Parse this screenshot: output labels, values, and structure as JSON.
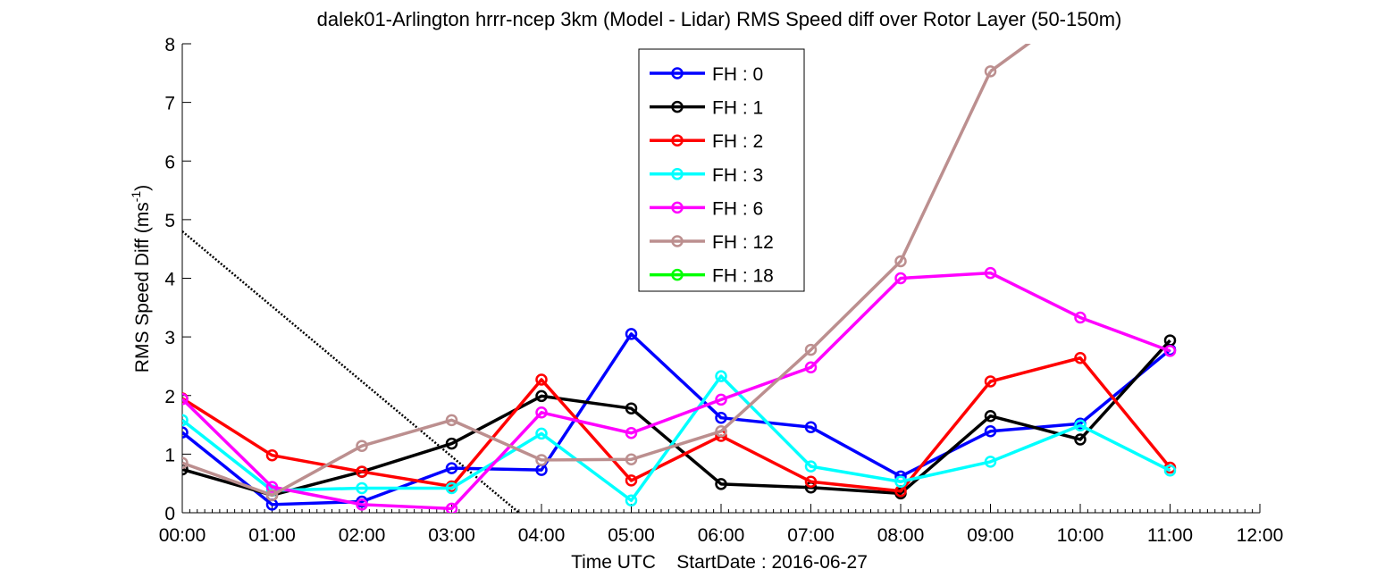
{
  "chart_data": {
    "type": "line",
    "title": "dalek01-Arlington hrrr-ncep 3km (Model - Lidar) RMS Speed diff over Rotor Layer (50-150m)",
    "xlabel": "Time UTC    StartDate : 2016-06-27",
    "ylabel_main": "RMS Speed Diff (ms",
    "ylabel_sup": "-1",
    "ylabel_close": ")",
    "x_ticks": [
      "00:00",
      "01:00",
      "02:00",
      "03:00",
      "04:00",
      "05:00",
      "06:00",
      "07:00",
      "08:00",
      "09:00",
      "10:00",
      "11:00",
      "12:00"
    ],
    "y_ticks": [
      "0",
      "1",
      "2",
      "3",
      "4",
      "5",
      "6",
      "7",
      "8"
    ],
    "xlim": [
      0,
      12
    ],
    "ylim": [
      0,
      8
    ],
    "grid": false,
    "legend_position": "top-center",
    "series": [
      {
        "name": "FH : 0",
        "color": "#0000ff",
        "x": [
          0,
          1,
          2,
          3,
          4,
          5,
          6,
          7,
          8,
          9,
          10,
          11
        ],
        "values": [
          1.37,
          0.14,
          0.19,
          0.76,
          0.73,
          3.05,
          1.62,
          1.46,
          0.62,
          1.39,
          1.52,
          2.78
        ]
      },
      {
        "name": "FH : 1",
        "color": "#000000",
        "x": [
          0,
          1,
          2,
          3,
          4,
          5,
          6,
          7,
          8,
          9,
          10,
          11
        ],
        "values": [
          0.74,
          0.3,
          0.7,
          1.18,
          1.99,
          1.78,
          0.49,
          0.43,
          0.33,
          1.65,
          1.25,
          2.94
        ]
      },
      {
        "name": "FH : 2",
        "color": "#ff0000",
        "x": [
          0,
          1,
          2,
          3,
          4,
          5,
          6,
          7,
          8,
          9,
          10,
          11
        ],
        "values": [
          1.95,
          0.98,
          0.7,
          0.45,
          2.27,
          0.55,
          1.31,
          0.53,
          0.37,
          2.24,
          2.64,
          0.77
        ]
      },
      {
        "name": "FH : 3",
        "color": "#00ffff",
        "x": [
          0,
          1,
          2,
          3,
          4,
          5,
          6,
          7,
          8,
          9,
          10,
          11
        ],
        "values": [
          1.58,
          0.38,
          0.42,
          0.42,
          1.35,
          0.21,
          2.33,
          0.79,
          0.53,
          0.87,
          1.49,
          0.72
        ]
      },
      {
        "name": "FH : 6",
        "color": "#ff00ff",
        "x": [
          0,
          1,
          2,
          3,
          4,
          5,
          6,
          7,
          8,
          9,
          10,
          11
        ],
        "values": [
          1.94,
          0.44,
          0.14,
          0.07,
          1.71,
          1.36,
          1.93,
          2.48,
          4.0,
          4.09,
          3.33,
          2.76
        ]
      },
      {
        "name": "FH : 12",
        "color": "#bc8f8f",
        "x": [
          0,
          1,
          2,
          3,
          4,
          5,
          6,
          7,
          8,
          9
        ],
        "values": [
          0.85,
          0.3,
          1.14,
          1.58,
          0.9,
          0.91,
          1.39,
          2.78,
          4.29,
          7.53
        ]
      },
      {
        "name": "FH : 18",
        "color": "#00ff00",
        "x": [],
        "values": []
      }
    ],
    "dotted_line": {
      "color": "#000000",
      "x": [
        0,
        3.75
      ],
      "values": [
        4.8,
        0
      ]
    }
  }
}
